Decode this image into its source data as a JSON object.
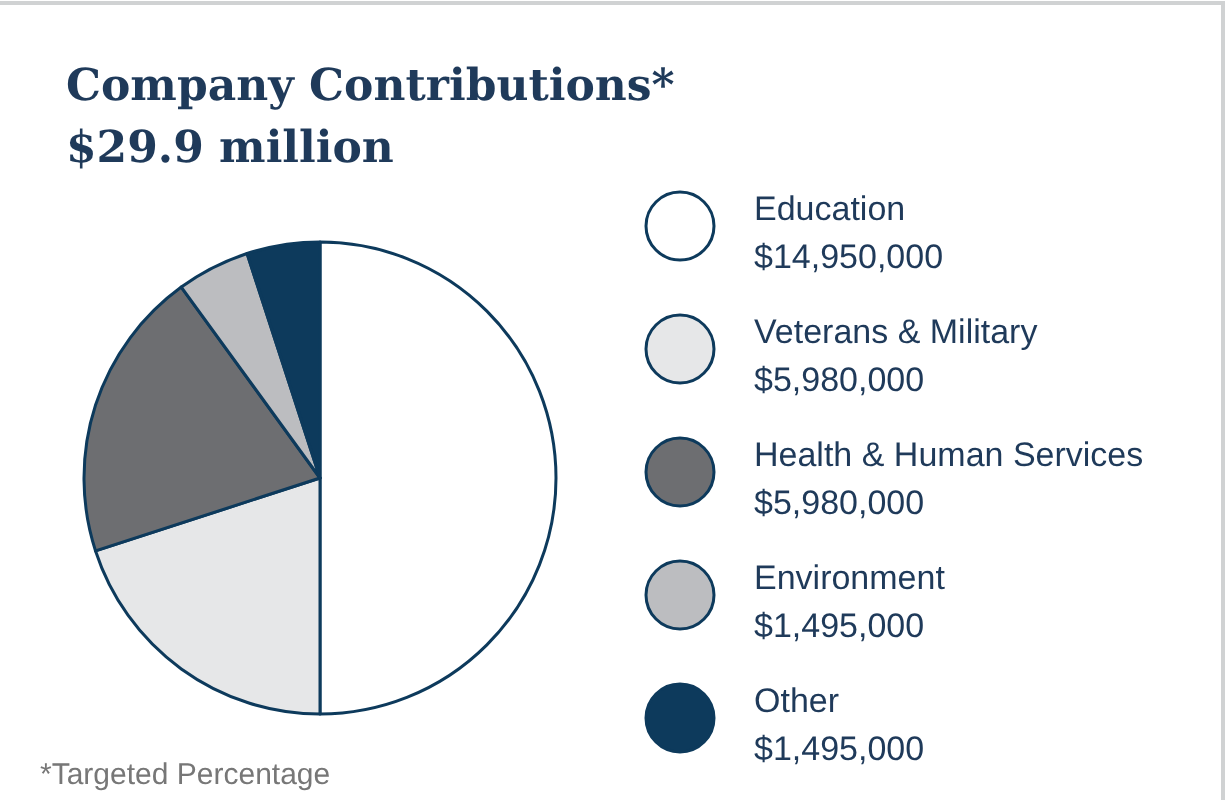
{
  "chart_data": {
    "type": "pie",
    "title": "Company Contributions*",
    "subtitle": "$29.9 million",
    "categories": [
      "Education",
      "Veterans & Military",
      "Health & Human Services",
      "Environment",
      "Other"
    ],
    "values": [
      14950000,
      5980000,
      5980000,
      1495000,
      1495000
    ],
    "value_labels": [
      "$14,950,000",
      "$5,980,000",
      "$5,980,000",
      "$1,495,000",
      "$1,495,000"
    ],
    "colors": [
      "#ffffff",
      "#e6e7e8",
      "#6d6e71",
      "#bcbdc0",
      "#0d3a5c"
    ],
    "legend": "right",
    "annotations": [
      "*Targeted Percentage"
    ]
  }
}
